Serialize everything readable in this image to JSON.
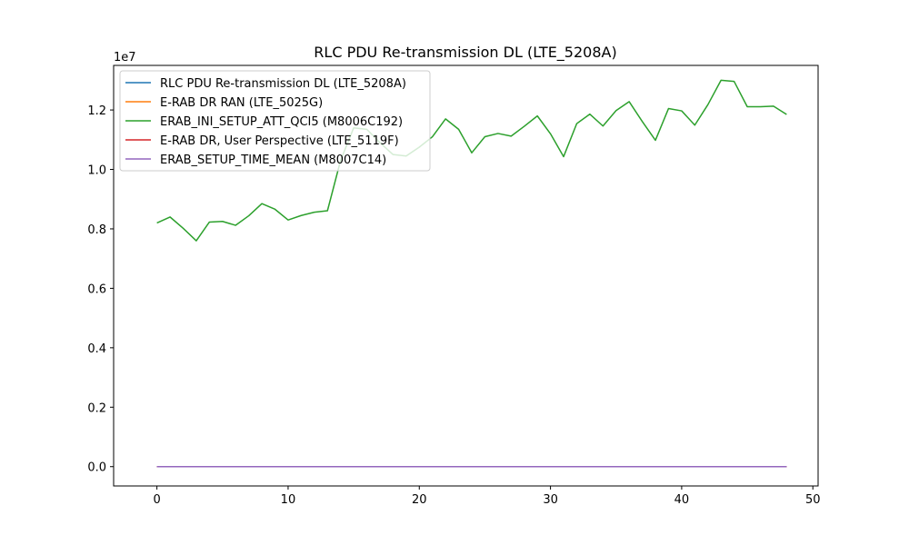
{
  "chart_data": {
    "type": "line",
    "title": "RLC PDU Re-transmission DL (LTE_5208A)",
    "xlabel": "",
    "ylabel": "",
    "xlim": [
      -3.3,
      50.4
    ],
    "ylim": [
      -650000,
      13500000
    ],
    "y_scale_label": "1e7",
    "x_ticks": [
      0,
      10,
      20,
      30,
      40,
      50
    ],
    "x_tick_labels": [
      "0",
      "10",
      "20",
      "30",
      "40",
      "50"
    ],
    "y_ticks": [
      0,
      2000000,
      4000000,
      6000000,
      8000000,
      10000000,
      12000000
    ],
    "y_tick_labels": [
      "0.0",
      "0.2",
      "0.4",
      "0.6",
      "0.8",
      "1.0",
      "1.2"
    ],
    "grid": false,
    "legend_position": "top-left",
    "x": [
      0,
      1,
      2,
      3,
      4,
      5,
      6,
      7,
      8,
      9,
      10,
      11,
      12,
      13,
      14,
      15,
      16,
      17,
      18,
      19,
      20,
      21,
      22,
      23,
      24,
      25,
      26,
      27,
      28,
      29,
      30,
      31,
      32,
      33,
      34,
      35,
      36,
      37,
      38,
      39,
      40,
      41,
      42,
      43,
      44,
      45,
      46,
      47,
      48
    ],
    "series": [
      {
        "name": "RLC PDU Re-transmission DL (LTE_5208A)",
        "color": "#1f77b4",
        "values": [
          0,
          0,
          0,
          0,
          0,
          0,
          0,
          0,
          0,
          0,
          0,
          0,
          0,
          0,
          0,
          0,
          0,
          0,
          0,
          0,
          0,
          0,
          0,
          0,
          0,
          0,
          0,
          0,
          0,
          0,
          0,
          0,
          0,
          0,
          0,
          0,
          0,
          0,
          0,
          0,
          0,
          0,
          0,
          0,
          0,
          0,
          0,
          0,
          0
        ]
      },
      {
        "name": "E-RAB DR RAN (LTE_5025G)",
        "color": "#ff7f0e",
        "values": [
          0,
          0,
          0,
          0,
          0,
          0,
          0,
          0,
          0,
          0,
          0,
          0,
          0,
          0,
          0,
          0,
          0,
          0,
          0,
          0,
          0,
          0,
          0,
          0,
          0,
          0,
          0,
          0,
          0,
          0,
          0,
          0,
          0,
          0,
          0,
          0,
          0,
          0,
          0,
          0,
          0,
          0,
          0,
          0,
          0,
          0,
          0,
          0,
          0
        ]
      },
      {
        "name": "ERAB_INI_SETUP_ATT_QCI5 (M8006C192)",
        "color": "#2ca02c",
        "values": [
          8200000,
          8400000,
          8020000,
          7600000,
          8230000,
          8250000,
          8120000,
          8440000,
          8850000,
          8660000,
          8300000,
          8450000,
          8560000,
          8610000,
          10300000,
          11400000,
          11350000,
          10900000,
          10500000,
          10450000,
          10750000,
          11100000,
          11700000,
          11350000,
          10560000,
          11100000,
          11210000,
          11120000,
          11450000,
          11800000,
          11200000,
          10430000,
          11540000,
          11860000,
          11460000,
          11980000,
          12280000,
          11610000,
          10980000,
          12050000,
          11970000,
          11490000,
          12180000,
          13000000,
          12960000,
          12110000,
          12110000,
          12130000,
          11850000
        ]
      },
      {
        "name": "E-RAB DR, User Perspective (LTE_5119F)",
        "color": "#d62728",
        "values": [
          0,
          0,
          0,
          0,
          0,
          0,
          0,
          0,
          0,
          0,
          0,
          0,
          0,
          0,
          0,
          0,
          0,
          0,
          0,
          0,
          0,
          0,
          0,
          0,
          0,
          0,
          0,
          0,
          0,
          0,
          0,
          0,
          0,
          0,
          0,
          0,
          0,
          0,
          0,
          0,
          0,
          0,
          0,
          0,
          0,
          0,
          0,
          0,
          0
        ]
      },
      {
        "name": "ERAB_SETUP_TIME_MEAN (M8007C14)",
        "color": "#9467bd",
        "values": [
          0,
          0,
          0,
          0,
          0,
          0,
          0,
          0,
          0,
          0,
          0,
          0,
          0,
          0,
          0,
          0,
          0,
          0,
          0,
          0,
          0,
          0,
          0,
          0,
          0,
          0,
          0,
          0,
          0,
          0,
          0,
          0,
          0,
          0,
          0,
          0,
          0,
          0,
          0,
          0,
          0,
          0,
          0,
          0,
          0,
          0,
          0,
          0,
          0
        ]
      }
    ]
  }
}
